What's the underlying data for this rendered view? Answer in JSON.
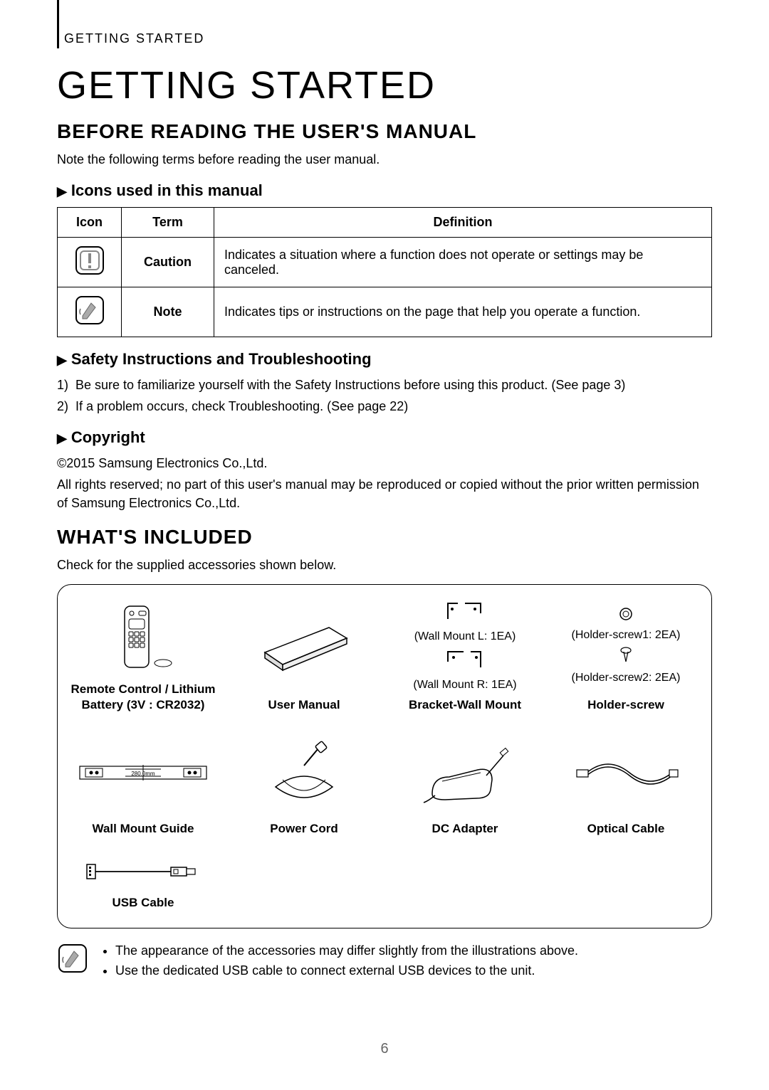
{
  "running_head": "GETTING STARTED",
  "title": "GETTING STARTED",
  "section1": {
    "heading": "BEFORE READING THE USER'S MANUAL",
    "intro": "Note the following terms before reading the user manual.",
    "sub1": {
      "marker": "▶",
      "text": "Icons used in this manual"
    },
    "table": {
      "headers": {
        "icon": "Icon",
        "term": "Term",
        "definition": "Definition"
      },
      "rows": [
        {
          "term": "Caution",
          "definition": "Indicates a situation where a function does not operate or settings may be canceled."
        },
        {
          "term": "Note",
          "definition": "Indicates tips or instructions on the page that help you operate a function."
        }
      ]
    },
    "sub2": {
      "marker": "▶",
      "text": "Safety Instructions and Troubleshooting"
    },
    "list": [
      {
        "num": "1)",
        "text": "Be sure to familiarize yourself with the Safety Instructions before using this product. (See page 3)"
      },
      {
        "num": "2)",
        "text": "If a problem occurs, check Troubleshooting. (See page 22)"
      }
    ],
    "sub3": {
      "marker": "▶",
      "text": "Copyright"
    },
    "copyright1": "©2015 Samsung Electronics Co.,Ltd.",
    "copyright2": "All rights reserved; no part of this user's manual may be reproduced or copied without the prior written permission of Samsung Electronics Co.,Ltd."
  },
  "section2": {
    "heading": "WHAT'S INCLUDED",
    "intro": "Check for the supplied accessories shown below.",
    "items": {
      "remote": {
        "caption": "Remote Control / Lithium\nBattery (3V : CR2032)"
      },
      "manual": {
        "caption": "User Manual"
      },
      "bracket": {
        "caption": "Bracket-Wall Mount",
        "sub1": "(Wall Mount L: 1EA)",
        "sub2": "(Wall Mount R: 1EA)"
      },
      "holder": {
        "caption": "Holder-screw",
        "sub1": "(Holder-screw1: 2EA)",
        "sub2": "(Holder-screw2: 2EA)"
      },
      "guide": {
        "caption": "Wall Mount Guide"
      },
      "power": {
        "caption": "Power Cord"
      },
      "dc": {
        "caption": "DC Adapter"
      },
      "optical": {
        "caption": "Optical Cable"
      },
      "usb": {
        "caption": "USB Cable"
      }
    },
    "notes": [
      "The appearance of the accessories may differ slightly from the illustrations above.",
      "Use the dedicated USB cable to connect external USB devices to the unit."
    ]
  },
  "page_number": "6"
}
